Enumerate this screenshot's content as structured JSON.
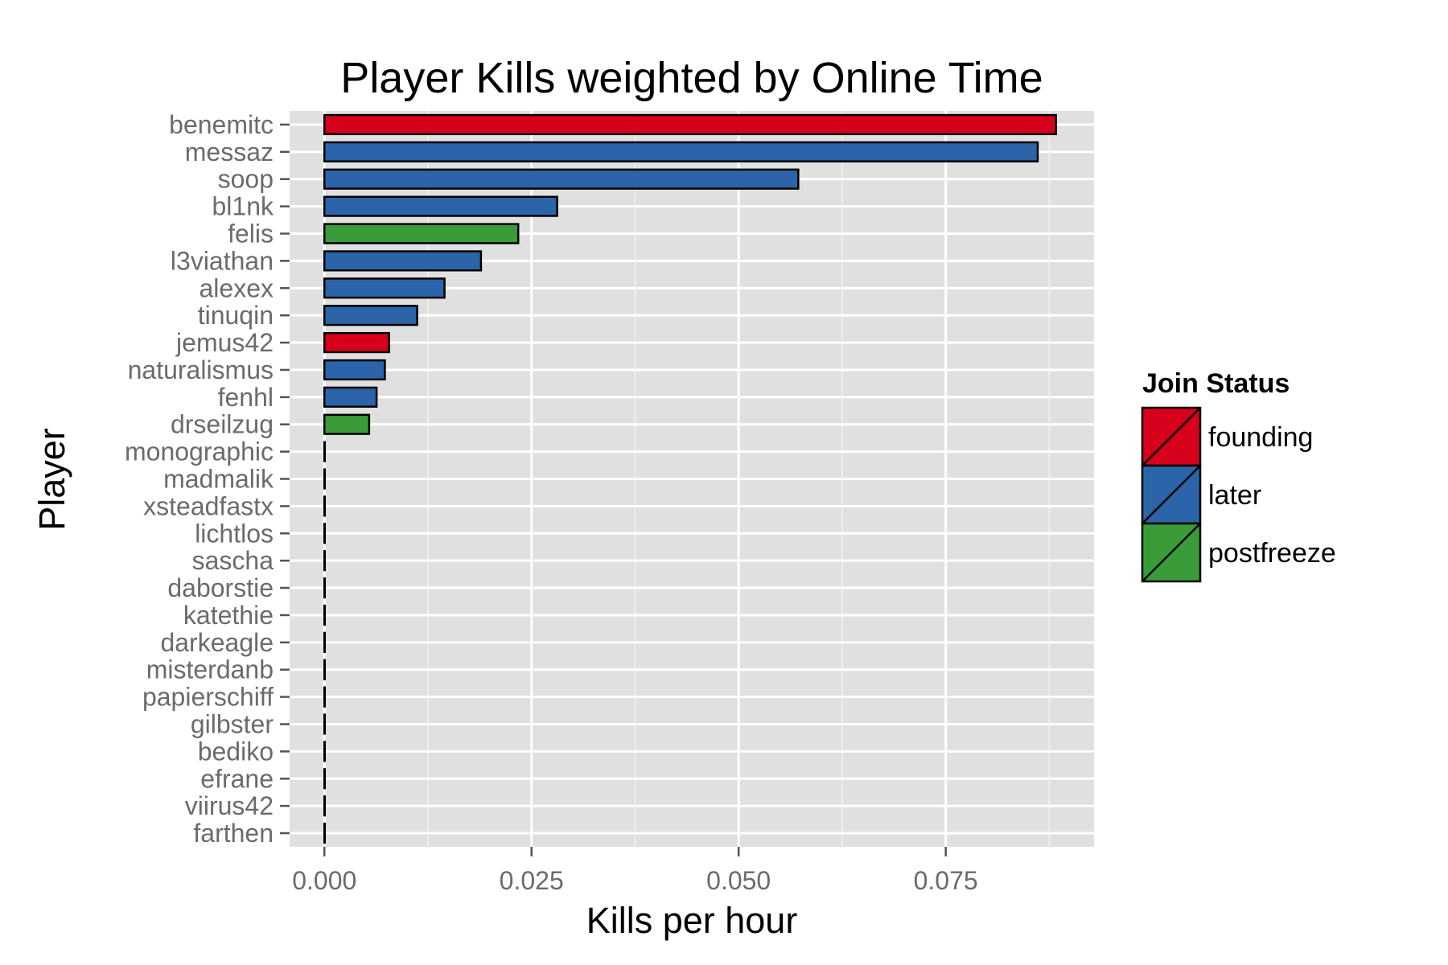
{
  "chart_data": {
    "type": "bar",
    "orientation": "horizontal",
    "title": "Player Kills weighted by Online Time",
    "xlabel": "Kills per hour",
    "ylabel": "Player",
    "xlim": [
      -0.0042,
      0.0929
    ],
    "xticks": [
      0.0,
      0.025,
      0.05,
      0.075
    ],
    "xtick_labels": [
      "0.000",
      "0.025",
      "0.050",
      "0.075"
    ],
    "grid": true,
    "legend_position": "right",
    "legend": {
      "title": "Join Status",
      "entries": [
        {
          "key": "founding",
          "label": "founding",
          "color": "#d7001c"
        },
        {
          "key": "later",
          "label": "later",
          "color": "#2b64a8"
        },
        {
          "key": "postfreeze",
          "label": "postfreeze",
          "color": "#3a9c38"
        }
      ]
    },
    "categories": [
      "benemitc",
      "messaz",
      "soop",
      "bl1nk",
      "felis",
      "l3viathan",
      "alexex",
      "tinuqin",
      "jemus42",
      "naturalismus",
      "fenhl",
      "drseilzug",
      "monographic",
      "madmalik",
      "xsteadfastx",
      "lichtlos",
      "sascha",
      "daborstie",
      "katethie",
      "darkeagle",
      "misterdanb",
      "papierschiff",
      "gilbster",
      "bediko",
      "efrane",
      "viirus42",
      "farthen"
    ],
    "values": [
      0.0883,
      0.0861,
      0.0572,
      0.0281,
      0.0234,
      0.0189,
      0.0145,
      0.0112,
      0.0078,
      0.0073,
      0.0063,
      0.0054,
      0,
      0,
      0,
      0,
      0,
      0,
      0,
      0,
      0,
      0,
      0,
      0,
      0,
      0,
      0
    ],
    "groups": [
      "founding",
      "later",
      "later",
      "later",
      "postfreeze",
      "later",
      "later",
      "later",
      "founding",
      "later",
      "later",
      "postfreeze",
      "later",
      "later",
      "later",
      "later",
      "later",
      "later",
      "later",
      "later",
      "later",
      "later",
      "later",
      "later",
      "later",
      "later",
      "later"
    ]
  }
}
